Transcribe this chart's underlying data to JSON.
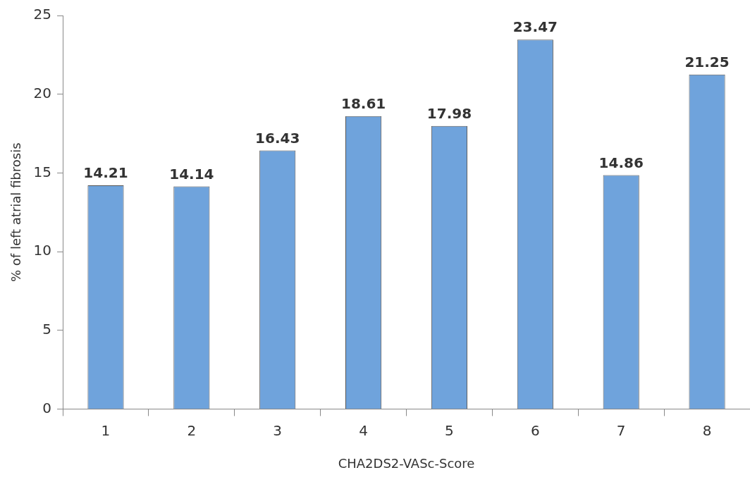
{
  "chart_data": {
    "type": "bar",
    "xlabel": "CHA2DS2-VASc-Score",
    "ylabel": "% of left atrial fibrosis",
    "categories": [
      "1",
      "2",
      "3",
      "4",
      "5",
      "6",
      "7",
      "8"
    ],
    "values": [
      14.21,
      14.14,
      16.43,
      18.61,
      17.98,
      23.47,
      14.86,
      21.25
    ],
    "color": "#6fa3dc",
    "ylim": [
      0,
      25
    ],
    "yticks": [
      0,
      5,
      10,
      15,
      20,
      25
    ],
    "grid": false,
    "legend": false,
    "data_labels": true
  }
}
